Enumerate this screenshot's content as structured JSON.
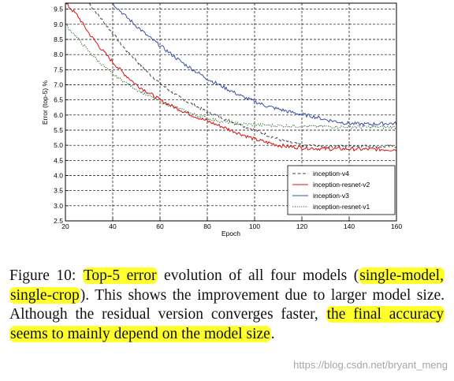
{
  "colors": {
    "inception_v4": "#444444",
    "inception_resnet_v2": "#dd1111",
    "inception_v3": "#3a4fa8",
    "inception_resnet_v1": "#1f5f1f",
    "highlight": "#ffff2b"
  },
  "chart_data": {
    "type": "line",
    "title": "",
    "xlabel": "Epoch",
    "ylabel": "Error (top-5) %",
    "xlim": [
      20,
      160
    ],
    "ylim": [
      2.5,
      9.7
    ],
    "xticks": [
      "20",
      "40",
      "60",
      "80",
      "100",
      "120",
      "140",
      "160"
    ],
    "yticks": [
      "2.5",
      "3.0",
      "3.5",
      "4.0",
      "4.5",
      "5.0",
      "5.5",
      "6.0",
      "6.5",
      "7.0",
      "7.5",
      "8.0",
      "8.5",
      "9.0",
      "9.5"
    ],
    "grid": true,
    "legend_position": "bottom-right",
    "series": [
      {
        "name": "inception-v4",
        "style": "dashed",
        "x": [
          30,
          35,
          40,
          45,
          50,
          55,
          60,
          65,
          70,
          75,
          80,
          85,
          90,
          95,
          100,
          105,
          110,
          115,
          120,
          125,
          130,
          135,
          140,
          145,
          150,
          155,
          160
        ],
        "y": [
          9.7,
          9.2,
          8.7,
          8.2,
          7.8,
          7.4,
          7.05,
          6.75,
          6.5,
          6.3,
          6.1,
          5.95,
          5.8,
          5.65,
          5.5,
          5.35,
          5.2,
          5.1,
          5.0,
          4.98,
          4.97,
          4.97,
          4.98,
          4.97,
          4.97,
          4.96,
          4.96
        ]
      },
      {
        "name": "inception-resnet-v2",
        "style": "solid",
        "x": [
          20,
          25,
          30,
          35,
          40,
          45,
          50,
          55,
          60,
          65,
          70,
          75,
          80,
          85,
          90,
          95,
          100,
          105,
          110,
          115,
          120,
          125,
          130,
          135,
          140,
          145,
          150,
          155,
          160
        ],
        "y": [
          9.7,
          9.3,
          8.7,
          8.2,
          7.75,
          7.35,
          7.0,
          6.75,
          6.5,
          6.3,
          6.12,
          5.95,
          5.8,
          5.65,
          5.5,
          5.35,
          5.2,
          5.1,
          5.0,
          4.95,
          4.92,
          4.9,
          4.88,
          4.88,
          4.88,
          4.87,
          4.87,
          4.86,
          4.86
        ]
      },
      {
        "name": "inception-v3",
        "style": "solid",
        "x": [
          40,
          45,
          50,
          55,
          60,
          65,
          70,
          75,
          80,
          85,
          90,
          95,
          100,
          105,
          110,
          115,
          120,
          125,
          130,
          135,
          140,
          145,
          150,
          155,
          160
        ],
        "y": [
          9.7,
          9.3,
          8.95,
          8.6,
          8.3,
          8.0,
          7.7,
          7.45,
          7.2,
          7.0,
          6.8,
          6.6,
          6.45,
          6.3,
          6.2,
          6.1,
          6.02,
          5.95,
          5.85,
          5.78,
          5.72,
          5.7,
          5.7,
          5.72,
          5.72
        ]
      },
      {
        "name": "inception-resnet-v1",
        "style": "dotted",
        "x": [
          20,
          25,
          30,
          35,
          40,
          45,
          50,
          55,
          60,
          65,
          70,
          75,
          80,
          85,
          90,
          95,
          100,
          105,
          110,
          115,
          120,
          125,
          130,
          135,
          140,
          145,
          150,
          155,
          160
        ],
        "y": [
          9.0,
          8.55,
          8.1,
          7.7,
          7.35,
          7.1,
          6.85,
          6.65,
          6.45,
          6.3,
          6.15,
          6.0,
          5.9,
          5.8,
          5.75,
          5.7,
          5.68,
          5.66,
          5.65,
          5.64,
          5.63,
          5.62,
          5.62,
          5.61,
          5.61,
          5.6,
          5.6,
          5.6,
          5.6
        ]
      }
    ]
  },
  "caption": {
    "parts": [
      {
        "text": "Figure 10: ",
        "hl": false
      },
      {
        "text": "Top-5 error",
        "hl": true
      },
      {
        "text": " evolution of all four models (",
        "hl": false
      },
      {
        "text": "single-model, single-crop",
        "hl": true
      },
      {
        "text": "). This shows the improvement due to larger model size. Although the residual version converges faster, ",
        "hl": false
      },
      {
        "text": "the final accuracy seems to mainly depend on the model size",
        "hl": true
      },
      {
        "text": ".",
        "hl": false
      }
    ]
  },
  "watermark": "https://blog.csdn.net/bryant_meng"
}
